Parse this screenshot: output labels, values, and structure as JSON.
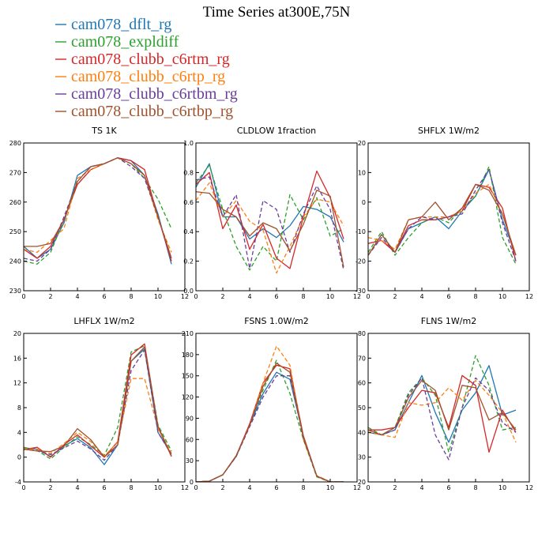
{
  "figure": {
    "title": "Time Series at300E,75N"
  },
  "legend": [
    {
      "name": "cam078_dflt_rg",
      "color": "#1f77b4",
      "dash": "solid"
    },
    {
      "name": "cam078_expldiff",
      "color": "#2ca02c",
      "dash": "dashed"
    },
    {
      "name": "cam078_clubb_c6rtm_rg",
      "color": "#d62728",
      "dash": "solid"
    },
    {
      "name": "cam078_clubb_c6rtp_rg",
      "color": "#ff7f0e",
      "dash": "dashed"
    },
    {
      "name": "cam078_clubb_c6rtbm_rg",
      "color": "#6a3d9a",
      "dash": "dashed"
    },
    {
      "name": "cam078_clubb_c6rtbp_rg",
      "color": "#a0522d",
      "dash": "solid"
    }
  ],
  "chart_data": [
    {
      "type": "line",
      "title": "TS   1K",
      "xlim": [
        0,
        12
      ],
      "ylim": [
        230,
        280
      ],
      "xticks": [
        0,
        2,
        4,
        6,
        8,
        10,
        12
      ],
      "yticks": [
        230,
        240,
        250,
        260,
        270,
        280
      ],
      "x": [
        0,
        1,
        2,
        3,
        4,
        5,
        6,
        7,
        8,
        9,
        10,
        11
      ],
      "series": [
        {
          "name": "cam078_dflt_rg",
          "values": [
            245,
            241,
            244,
            253,
            269,
            272,
            273,
            275,
            274,
            269,
            256,
            239
          ]
        },
        {
          "name": "cam078_expldiff",
          "values": [
            240,
            239,
            243,
            254,
            266,
            271,
            273,
            275,
            273,
            268,
            261,
            251
          ]
        },
        {
          "name": "cam078_clubb_c6rtm_rg",
          "values": [
            244,
            241,
            245,
            254,
            266,
            271,
            273,
            275,
            274,
            271,
            255,
            240
          ]
        },
        {
          "name": "cam078_clubb_c6rtp_rg",
          "values": [
            244,
            243,
            247,
            251,
            268,
            271,
            273,
            275,
            273,
            269,
            254,
            243
          ]
        },
        {
          "name": "cam078_clubb_c6rtbm_rg",
          "values": [
            241,
            240,
            244,
            255,
            267,
            272,
            273,
            275,
            272,
            268,
            255,
            241
          ]
        },
        {
          "name": "cam078_clubb_c6rtbp_rg",
          "values": [
            245,
            245,
            246,
            254,
            267,
            272,
            273,
            275,
            273,
            269,
            255,
            241
          ]
        }
      ]
    },
    {
      "type": "line",
      "title": "CLDLOW   1fraction",
      "xlim": [
        0,
        12
      ],
      "ylim": [
        0.0,
        1.0
      ],
      "xticks": [
        0,
        2,
        4,
        6,
        8,
        10,
        12
      ],
      "yticks": [
        0.0,
        0.2,
        0.4,
        0.6,
        0.8,
        1.0
      ],
      "x": [
        0,
        1,
        2,
        3,
        4,
        5,
        6,
        7,
        8,
        9,
        10,
        11
      ],
      "series": [
        {
          "name": "cam078_dflt_rg",
          "values": [
            0.7,
            0.86,
            0.5,
            0.5,
            0.35,
            0.42,
            0.36,
            0.44,
            0.57,
            0.55,
            0.5,
            0.33
          ]
        },
        {
          "name": "cam078_expldiff",
          "values": [
            0.73,
            0.85,
            0.55,
            0.3,
            0.14,
            0.3,
            0.2,
            0.65,
            0.48,
            0.63,
            0.37,
            0.42
          ]
        },
        {
          "name": "cam078_clubb_c6rtm_rg",
          "values": [
            0.72,
            0.8,
            0.42,
            0.58,
            0.28,
            0.45,
            0.22,
            0.15,
            0.5,
            0.81,
            0.63,
            0.35
          ]
        },
        {
          "name": "cam078_clubb_c6rtp_rg",
          "values": [
            0.61,
            0.73,
            0.5,
            0.61,
            0.47,
            0.41,
            0.12,
            0.3,
            0.5,
            0.62,
            0.6,
            0.44
          ]
        },
        {
          "name": "cam078_clubb_c6rtbm_rg",
          "values": [
            0.75,
            0.77,
            0.5,
            0.65,
            0.15,
            0.61,
            0.55,
            0.26,
            0.52,
            0.71,
            0.55,
            0.14
          ]
        },
        {
          "name": "cam078_clubb_c6rtbp_rg",
          "values": [
            0.67,
            0.66,
            0.55,
            0.5,
            0.37,
            0.46,
            0.42,
            0.27,
            0.45,
            0.68,
            0.64,
            0.16
          ]
        }
      ]
    },
    {
      "type": "line",
      "title": "SHFLX   1W/m2",
      "xlim": [
        0,
        12
      ],
      "ylim": [
        -30,
        20
      ],
      "xticks": [
        0,
        2,
        4,
        6,
        8,
        10,
        12
      ],
      "yticks": [
        -30,
        -20,
        -10,
        0,
        10,
        20
      ],
      "x": [
        0,
        1,
        2,
        3,
        4,
        5,
        6,
        7,
        8,
        9,
        10,
        11
      ],
      "series": [
        {
          "name": "cam078_dflt_rg",
          "values": [
            -18,
            -11,
            -17,
            -9,
            -7,
            -5,
            -9,
            -3,
            2,
            11,
            -6,
            -18
          ]
        },
        {
          "name": "cam078_expldiff",
          "values": [
            -17,
            -10,
            -18,
            -12,
            -7,
            -5,
            -7,
            -2,
            2,
            12,
            -12,
            -21
          ]
        },
        {
          "name": "cam078_clubb_c6rtm_rg",
          "values": [
            -14,
            -13,
            -17,
            -8,
            -6,
            -6,
            -5,
            -3,
            6,
            5,
            -2,
            -20
          ]
        },
        {
          "name": "cam078_clubb_c6rtp_rg",
          "values": [
            -12,
            -13,
            -16,
            -6,
            -5,
            -5,
            -5,
            -3,
            3,
            6,
            -4,
            -18
          ]
        },
        {
          "name": "cam078_clubb_c6rtbm_rg",
          "values": [
            -18,
            -12,
            -17,
            -9,
            -5,
            -6,
            -5,
            -4,
            4,
            11,
            -7,
            -20
          ]
        },
        {
          "name": "cam078_clubb_c6rtbp_rg",
          "values": [
            -18,
            -11,
            -17,
            -6,
            -5,
            0,
            -6,
            -2,
            6,
            4,
            -4,
            -18
          ]
        }
      ]
    },
    {
      "type": "line",
      "title": "LHFLX   1W/m2",
      "xlim": [
        0,
        12
      ],
      "ylim": [
        -4,
        20
      ],
      "xticks": [
        0,
        2,
        4,
        6,
        8,
        10,
        12
      ],
      "yticks": [
        -4,
        0,
        4,
        8,
        12,
        16,
        20
      ],
      "x": [
        0,
        1,
        2,
        3,
        4,
        5,
        6,
        7,
        8,
        9,
        10,
        11
      ],
      "series": [
        {
          "name": "cam078_dflt_rg",
          "values": [
            1.5,
            1.3,
            0.1,
            1.8,
            3.0,
            1.5,
            -1.2,
            2.0,
            15.5,
            17.5,
            4.0,
            0.5
          ]
        },
        {
          "name": "cam078_expldiff",
          "values": [
            1.6,
            1.1,
            -0.3,
            1.6,
            3.3,
            2.0,
            0.3,
            4.8,
            17.0,
            18.0,
            5.2,
            1.0
          ]
        },
        {
          "name": "cam078_clubb_c6rtm_rg",
          "values": [
            1.2,
            1.6,
            0.0,
            2.0,
            3.6,
            1.8,
            0.0,
            2.5,
            16.5,
            18.3,
            4.8,
            0.1
          ]
        },
        {
          "name": "cam078_clubb_c6rtp_rg",
          "values": [
            1.4,
            1.2,
            0.6,
            2.2,
            4.0,
            2.5,
            0.2,
            2.4,
            12.7,
            12.7,
            4.6,
            0.7
          ]
        },
        {
          "name": "cam078_clubb_c6rtbm_rg",
          "values": [
            1.3,
            1.0,
            0.4,
            1.5,
            2.6,
            1.3,
            -0.5,
            2.0,
            14.0,
            17.3,
            4.0,
            0.4
          ]
        },
        {
          "name": "cam078_clubb_c6rtbp_rg",
          "values": [
            1.3,
            1.0,
            0.9,
            1.8,
            4.6,
            2.8,
            0.0,
            2.0,
            15.5,
            17.8,
            5.0,
            0.2
          ]
        }
      ]
    },
    {
      "type": "line",
      "title": "FSNS   1.0W/m2",
      "xlim": [
        0,
        12
      ],
      "ylim": [
        0,
        210
      ],
      "xticks": [
        0,
        2,
        4,
        6,
        8,
        10,
        12
      ],
      "yticks": [
        0,
        30,
        60,
        90,
        120,
        150,
        180,
        210
      ],
      "x": [
        0,
        1,
        2,
        3,
        4,
        5,
        6,
        7,
        8,
        9,
        10,
        11
      ],
      "series": [
        {
          "name": "cam078_dflt_rg",
          "values": [
            0,
            1,
            10,
            36,
            80,
            125,
            155,
            145,
            65,
            8,
            0,
            0
          ]
        },
        {
          "name": "cam078_expldiff",
          "values": [
            0,
            1,
            10,
            36,
            82,
            130,
            172,
            125,
            60,
            7,
            0,
            0
          ]
        },
        {
          "name": "cam078_clubb_c6rtm_rg",
          "values": [
            0,
            1,
            10,
            37,
            82,
            140,
            165,
            160,
            65,
            8,
            0,
            0
          ]
        },
        {
          "name": "cam078_clubb_c6rtp_rg",
          "values": [
            0,
            1,
            10,
            37,
            80,
            140,
            192,
            165,
            60,
            9,
            0,
            0
          ]
        },
        {
          "name": "cam078_clubb_c6rtbm_rg",
          "values": [
            0,
            1,
            10,
            36,
            78,
            120,
            150,
            150,
            62,
            8,
            0,
            0
          ]
        },
        {
          "name": "cam078_clubb_c6rtbp_rg",
          "values": [
            0,
            1,
            10,
            37,
            80,
            135,
            168,
            155,
            63,
            8,
            0,
            0
          ]
        }
      ]
    },
    {
      "type": "line",
      "title": "FLNS   1W/m2",
      "xlim": [
        0,
        12
      ],
      "ylim": [
        20,
        80
      ],
      "xticks": [
        0,
        2,
        4,
        6,
        8,
        10,
        12
      ],
      "yticks": [
        20,
        30,
        40,
        50,
        60,
        70,
        80
      ],
      "x": [
        0,
        1,
        2,
        3,
        4,
        5,
        6,
        7,
        8,
        9,
        10,
        11
      ],
      "series": [
        {
          "name": "cam078_dflt_rg",
          "values": [
            40,
            39,
            41,
            52,
            63,
            48,
            36,
            49,
            56,
            67,
            47,
            49
          ]
        },
        {
          "name": "cam078_expldiff",
          "values": [
            42,
            39,
            42,
            56,
            62,
            55,
            32,
            50,
            71,
            59,
            41,
            42
          ]
        },
        {
          "name": "cam078_clubb_c6rtm_rg",
          "values": [
            41,
            41,
            42,
            50,
            57,
            56,
            42,
            63,
            59,
            32,
            49,
            40
          ]
        },
        {
          "name": "cam078_clubb_c6rtp_rg",
          "values": [
            40,
            39,
            38,
            52,
            51,
            52,
            58,
            53,
            61,
            55,
            48,
            36
          ]
        },
        {
          "name": "cam078_clubb_c6rtbm_rg",
          "values": [
            41,
            39,
            41,
            55,
            62,
            39,
            29,
            50,
            62,
            57,
            44,
            40
          ]
        },
        {
          "name": "cam078_clubb_c6rtbp_rg",
          "values": [
            41,
            39,
            42,
            54,
            61,
            57,
            41,
            59,
            58,
            45,
            48,
            41
          ]
        }
      ]
    }
  ]
}
